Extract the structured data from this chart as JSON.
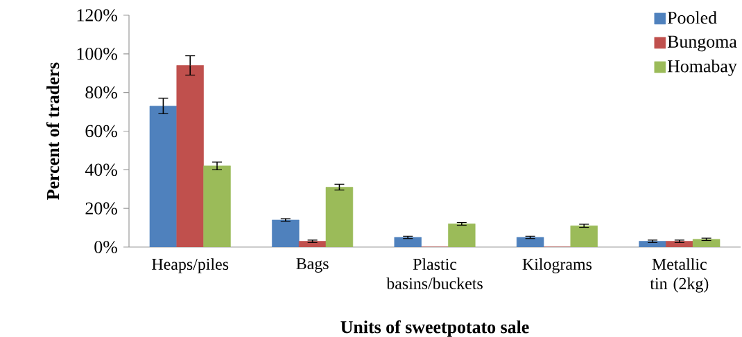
{
  "chart_data": {
    "type": "bar",
    "categories": [
      "Heaps/piles",
      "Bags",
      "Plastic basins/buckets",
      "Kilograms",
      "Metallic tin (2kg)"
    ],
    "series": [
      {
        "name": "Pooled",
        "color": "#4f81bd",
        "values": [
          73,
          14,
          5,
          5,
          3
        ],
        "errors": [
          4,
          0.7,
          0.6,
          0.6,
          0.6
        ]
      },
      {
        "name": "Bungoma",
        "color": "#c0504d",
        "values": [
          94,
          3,
          0,
          0,
          3
        ],
        "errors": [
          5,
          0.6,
          null,
          null,
          0.6
        ]
      },
      {
        "name": "Homabay",
        "color": "#9bbb59",
        "values": [
          42,
          31,
          12,
          11,
          4
        ],
        "errors": [
          2,
          1.5,
          0.7,
          0.8,
          0.6
        ]
      }
    ],
    "xlabel": "Units of sweetpotato sale",
    "ylabel": "Percent of traders",
    "ylim": [
      0,
      120
    ],
    "yticks": [
      {
        "value": 0,
        "label": "0%"
      },
      {
        "value": 20,
        "label": "20%"
      },
      {
        "value": 40,
        "label": "40%"
      },
      {
        "value": 60,
        "label": "60%"
      },
      {
        "value": 80,
        "label": "80%"
      },
      {
        "value": 100,
        "label": "100%"
      },
      {
        "value": 120,
        "label": "120%"
      }
    ],
    "legend": "top right"
  }
}
